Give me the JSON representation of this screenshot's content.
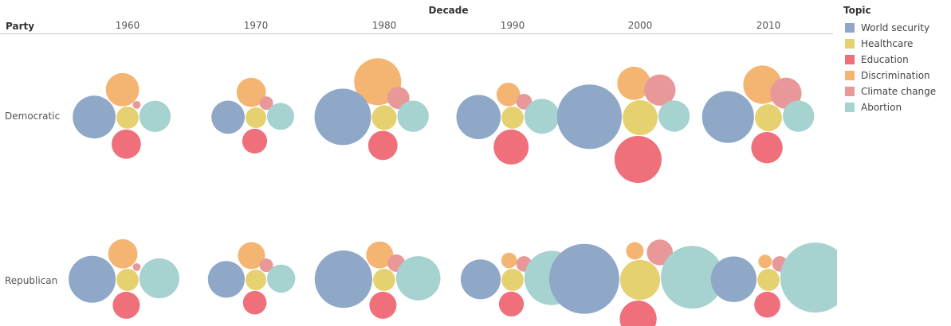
{
  "chart_data": {
    "type": "bubble",
    "column_field": "Decade",
    "row_field": "Party",
    "legend_title": "Topic",
    "legend_position": "right",
    "decades": [
      "1960",
      "1970",
      "1980",
      "1990",
      "2000",
      "2010"
    ],
    "parties": [
      "Democratic",
      "Republican"
    ],
    "topics": [
      {
        "name": "World security",
        "color": "#8fa8c8"
      },
      {
        "name": "Healthcare",
        "color": "#e6d170"
      },
      {
        "name": "Education",
        "color": "#ef6f7a"
      },
      {
        "name": "Discrimination",
        "color": "#f4b472"
      },
      {
        "name": "Climate change",
        "color": "#e9989a"
      },
      {
        "name": "Abortion",
        "color": "#a6d2cf"
      }
    ],
    "series": [
      {
        "party": "Democratic",
        "decade": "1960",
        "values": {
          "World security": 1.5,
          "Healthcare": 0.4,
          "Education": 0.7,
          "Discrimination": 0.9,
          "Climate change": 0.05,
          "Abortion": 0.8
        }
      },
      {
        "party": "Democratic",
        "decade": "1970",
        "values": {
          "World security": 0.9,
          "Healthcare": 0.35,
          "Education": 0.5,
          "Discrimination": 0.7,
          "Climate change": 0.15,
          "Abortion": 0.6
        }
      },
      {
        "party": "Democratic",
        "decade": "1980",
        "values": {
          "World security": 2.6,
          "Healthcare": 0.5,
          "Education": 0.7,
          "Discrimination": 1.8,
          "Climate change": 0.4,
          "Abortion": 0.8
        }
      },
      {
        "party": "Democratic",
        "decade": "1990",
        "values": {
          "World security": 1.6,
          "Healthcare": 0.4,
          "Education": 1.0,
          "Discrimination": 0.45,
          "Climate change": 0.2,
          "Abortion": 1.0
        }
      },
      {
        "party": "Democratic",
        "decade": "2000",
        "values": {
          "World security": 3.4,
          "Healthcare": 1.0,
          "Education": 1.8,
          "Discrimination": 0.9,
          "Climate change": 0.8,
          "Abortion": 0.8
        }
      },
      {
        "party": "Democratic",
        "decade": "2010",
        "values": {
          "World security": 2.2,
          "Healthcare": 0.6,
          "Education": 0.8,
          "Discrimination": 1.2,
          "Climate change": 0.8,
          "Abortion": 0.8
        }
      },
      {
        "party": "Republican",
        "decade": "1960",
        "values": {
          "World security": 1.8,
          "Healthcare": 0.4,
          "Education": 0.6,
          "Discrimination": 0.7,
          "Climate change": 0.05,
          "Abortion": 1.3
        }
      },
      {
        "party": "Republican",
        "decade": "1970",
        "values": {
          "World security": 1.1,
          "Healthcare": 0.35,
          "Education": 0.45,
          "Discrimination": 0.6,
          "Climate change": 0.15,
          "Abortion": 0.65
        }
      },
      {
        "party": "Republican",
        "decade": "1980",
        "values": {
          "World security": 2.7,
          "Healthcare": 0.4,
          "Education": 0.6,
          "Discrimination": 0.6,
          "Climate change": 0.25,
          "Abortion": 1.6
        }
      },
      {
        "party": "Republican",
        "decade": "1990",
        "values": {
          "World security": 1.3,
          "Healthcare": 0.4,
          "Education": 0.5,
          "Discrimination": 0.2,
          "Climate change": 0.2,
          "Abortion": 2.4
        }
      },
      {
        "party": "Republican",
        "decade": "2000",
        "values": {
          "World security": 4.0,
          "Healthcare": 1.3,
          "Education": 1.1,
          "Discrimination": 0.25,
          "Climate change": 0.55,
          "Abortion": 3.2
        }
      },
      {
        "party": "Republican",
        "decade": "2010",
        "values": {
          "World security": 1.7,
          "Healthcare": 0.4,
          "Education": 0.55,
          "Discrimination": 0.15,
          "Climate change": 0.2,
          "Abortion": 4.0
        }
      }
    ]
  }
}
